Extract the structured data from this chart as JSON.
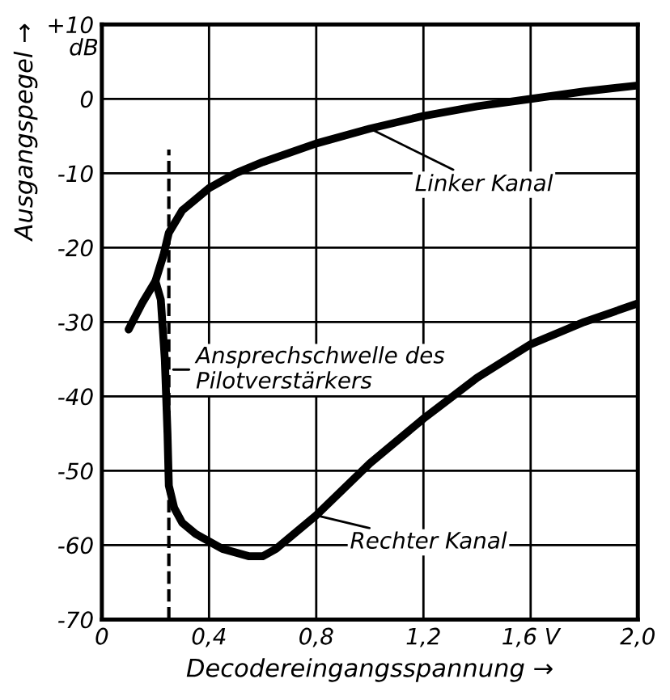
{
  "chart_data": {
    "type": "line",
    "xlabel": "Decodereingangsspannung →",
    "ylabel": "Ausgangspegel →",
    "annotations": [
      "dB"
    ],
    "series": [
      {
        "name": "Linker Kanal",
        "color": "#000000",
        "x": [
          0.1,
          0.15,
          0.2,
          0.23,
          0.25,
          0.3,
          0.4,
          0.5,
          0.6,
          0.8,
          1.0,
          1.2,
          1.4,
          1.6,
          1.8,
          2.0
        ],
        "values": [
          -31,
          -27.5,
          -24.5,
          -21,
          -18,
          -15,
          -12,
          -10,
          -8.5,
          -6,
          -4,
          -2.3,
          -1,
          0,
          1,
          1.8
        ]
      },
      {
        "name": "Rechter Kanal",
        "color": "#000000",
        "x": [
          0.2,
          0.22,
          0.235,
          0.245,
          0.25,
          0.27,
          0.3,
          0.35,
          0.45,
          0.55,
          0.6,
          0.65,
          0.8,
          1.0,
          1.2,
          1.4,
          1.6,
          1.8,
          2.0
        ],
        "values": [
          -24.5,
          -27,
          -35,
          -45,
          -52,
          -55,
          -57,
          -58.5,
          -60.5,
          -61.5,
          -61.5,
          -60.5,
          -56,
          -49,
          -43,
          -37.5,
          -33,
          -30,
          -27.5
        ]
      }
    ],
    "ref_lines": [
      {
        "axis": "x",
        "value": 0.25,
        "label": "Ansprechschwelle des\nPilotverstärkers",
        "line_style": "dashed",
        "color": "#000000"
      }
    ],
    "xlim": [
      0,
      2.0
    ],
    "xticks": [
      0,
      {
        "value": 0.4,
        "label": "0,4"
      },
      {
        "value": 0.8,
        "label": "0,8"
      },
      {
        "value": 1.2,
        "label": "1,2"
      },
      {
        "value": 1.6,
        "label": "1,6 V"
      },
      {
        "value": 2.0,
        "label": "2,0"
      }
    ],
    "ylim": [
      -70,
      10
    ],
    "yticks": [
      {
        "value": 10,
        "label": "+10"
      },
      0,
      -10,
      -20,
      -30,
      -40,
      -50,
      -60,
      -70
    ],
    "grid": true,
    "legend": "right",
    "marker": "none",
    "line_style": "solid"
  }
}
